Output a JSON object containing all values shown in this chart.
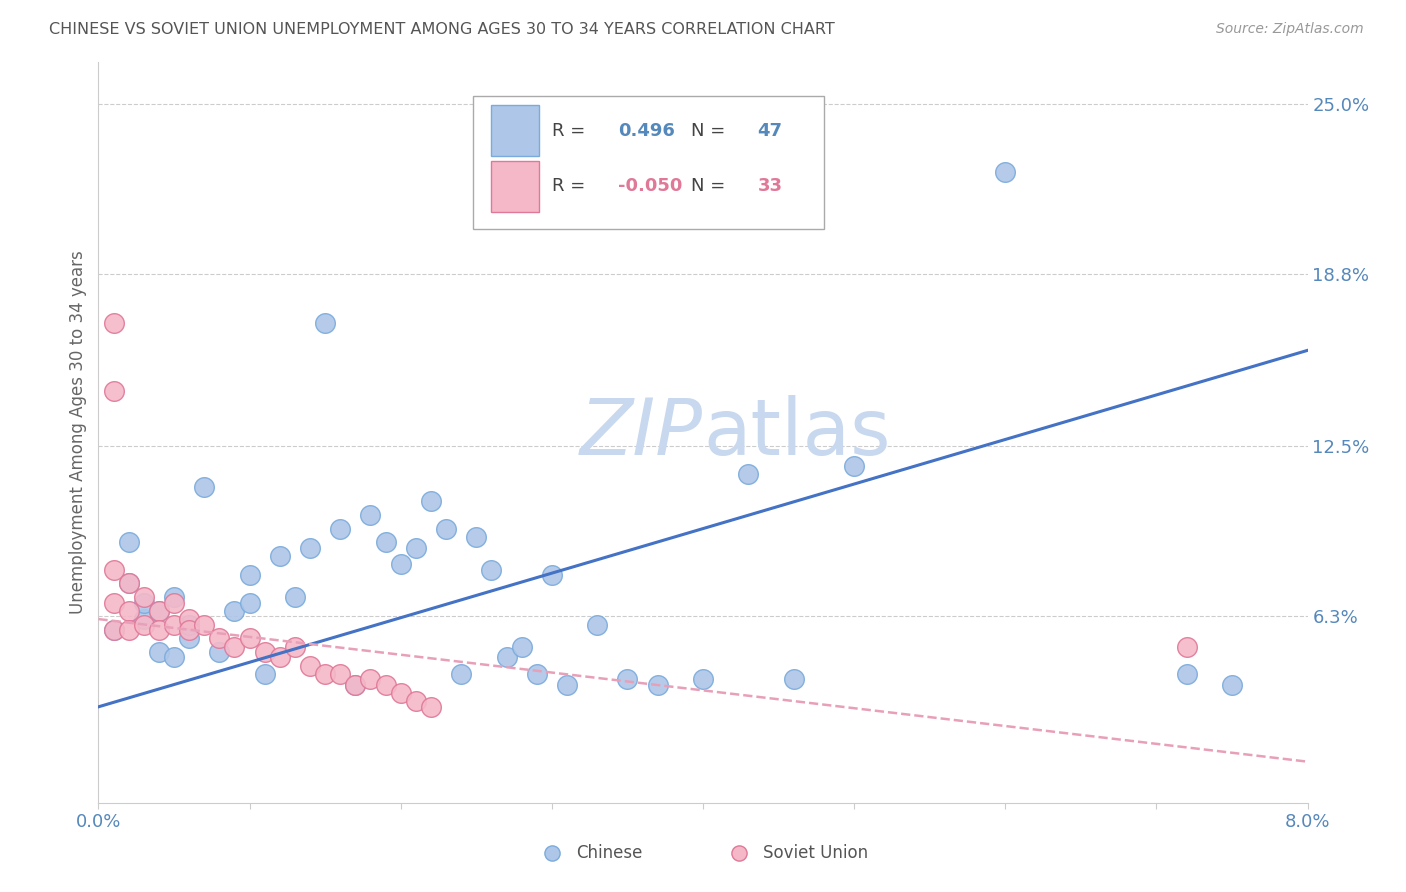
{
  "title": "CHINESE VS SOVIET UNION UNEMPLOYMENT AMONG AGES 30 TO 34 YEARS CORRELATION CHART",
  "source": "Source: ZipAtlas.com",
  "ylabel": "Unemployment Among Ages 30 to 34 years",
  "watermark": "ZIPatlas",
  "xlim": [
    0.0,
    0.08
  ],
  "ylim": [
    -0.005,
    0.265
  ],
  "ytick_positions": [
    0.0,
    0.063,
    0.125,
    0.188,
    0.25
  ],
  "ytick_labels": [
    "",
    "6.3%",
    "12.5%",
    "18.8%",
    "25.0%"
  ],
  "xtick_positions": [
    0.0,
    0.01,
    0.02,
    0.03,
    0.04,
    0.05,
    0.06,
    0.07,
    0.08
  ],
  "xtick_labels": [
    "0.0%",
    "",
    "",
    "",
    "",
    "",
    "",
    "",
    "8.0%"
  ],
  "chinese_scatter_x": [
    0.001,
    0.002,
    0.002,
    0.003,
    0.003,
    0.004,
    0.004,
    0.005,
    0.005,
    0.006,
    0.006,
    0.007,
    0.008,
    0.009,
    0.01,
    0.01,
    0.011,
    0.012,
    0.013,
    0.014,
    0.015,
    0.016,
    0.017,
    0.018,
    0.019,
    0.02,
    0.021,
    0.022,
    0.023,
    0.024,
    0.025,
    0.026,
    0.027,
    0.028,
    0.029,
    0.03,
    0.031,
    0.033,
    0.035,
    0.037,
    0.04,
    0.043,
    0.046,
    0.05,
    0.06,
    0.072,
    0.075
  ],
  "chinese_scatter_y": [
    0.058,
    0.075,
    0.09,
    0.062,
    0.068,
    0.05,
    0.065,
    0.048,
    0.07,
    0.055,
    0.06,
    0.11,
    0.05,
    0.065,
    0.068,
    0.078,
    0.042,
    0.085,
    0.07,
    0.088,
    0.17,
    0.095,
    0.038,
    0.1,
    0.09,
    0.082,
    0.088,
    0.105,
    0.095,
    0.042,
    0.092,
    0.08,
    0.048,
    0.052,
    0.042,
    0.078,
    0.038,
    0.06,
    0.04,
    0.038,
    0.04,
    0.115,
    0.04,
    0.118,
    0.225,
    0.042,
    0.038
  ],
  "soviet_scatter_x": [
    0.001,
    0.001,
    0.001,
    0.001,
    0.001,
    0.002,
    0.002,
    0.002,
    0.003,
    0.003,
    0.004,
    0.004,
    0.005,
    0.005,
    0.006,
    0.006,
    0.007,
    0.008,
    0.009,
    0.01,
    0.011,
    0.012,
    0.013,
    0.014,
    0.015,
    0.016,
    0.017,
    0.018,
    0.019,
    0.02,
    0.021,
    0.022,
    0.072
  ],
  "soviet_scatter_y": [
    0.17,
    0.145,
    0.08,
    0.068,
    0.058,
    0.075,
    0.065,
    0.058,
    0.07,
    0.06,
    0.065,
    0.058,
    0.06,
    0.068,
    0.062,
    0.058,
    0.06,
    0.055,
    0.052,
    0.055,
    0.05,
    0.048,
    0.052,
    0.045,
    0.042,
    0.042,
    0.038,
    0.04,
    0.038,
    0.035,
    0.032,
    0.03,
    0.052
  ],
  "chinese_line_x": [
    0.0,
    0.08
  ],
  "chinese_line_y": [
    0.03,
    0.16
  ],
  "soviet_line_x": [
    0.0,
    0.08
  ],
  "soviet_line_y": [
    0.062,
    0.01
  ],
  "grid_color": "#cccccc",
  "title_color": "#555555",
  "axis_label_color": "#5588bb",
  "chinese_dot_color": "#aec6e8",
  "chinese_dot_edge": "#7aabdc",
  "soviet_dot_color": "#f4b8c8",
  "soviet_dot_edge": "#e07898",
  "blue_line_color": "#4472c4",
  "pink_line_color": "#e8a0b8",
  "background_color": "#ffffff",
  "watermark_color": "#c8d8ee",
  "legend_r1": "0.496",
  "legend_n1": "47",
  "legend_r2": "-0.050",
  "legend_n2": "33"
}
